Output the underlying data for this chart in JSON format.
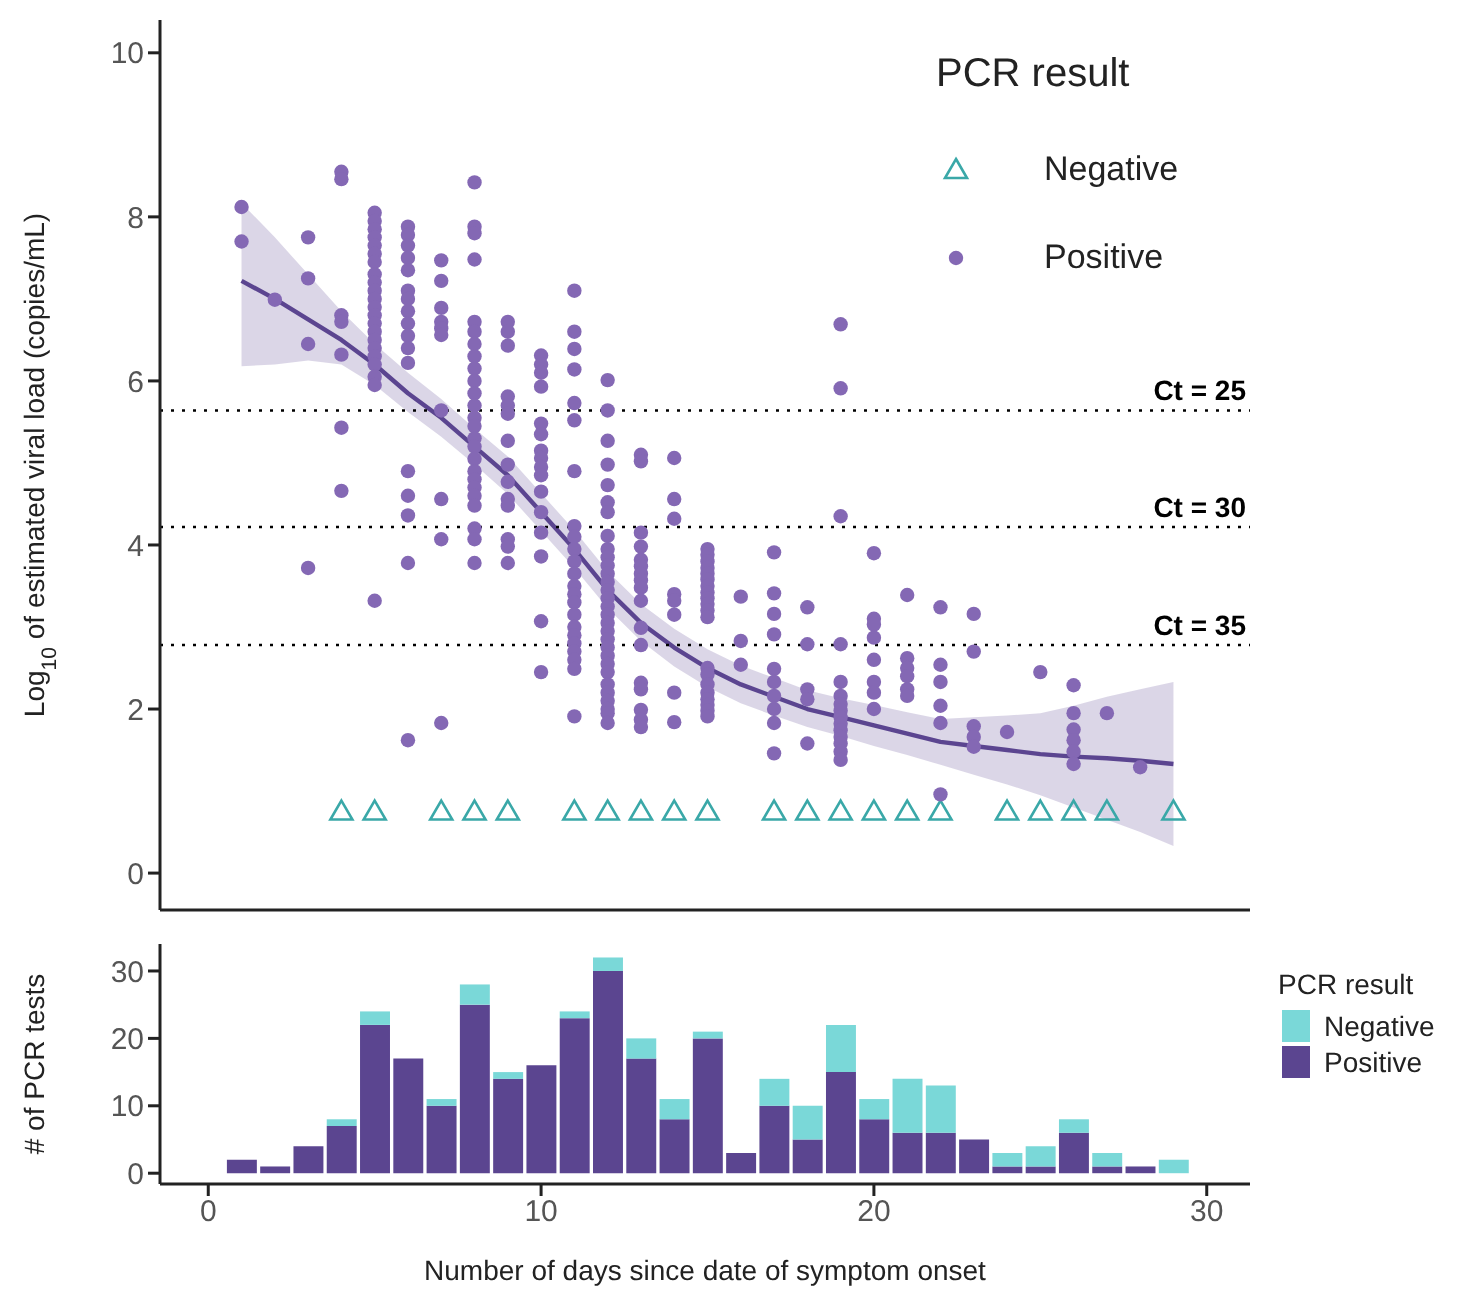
{
  "chart_data": [
    {
      "type": "scatter",
      "ylabel": "Log$_{10}$ of estimated viral load (copies/mL)",
      "legend_title": "PCR result",
      "legend": "top right",
      "tick_labels": "y",
      "xlim": [
        -1.45,
        31.3
      ],
      "xticks": [
        0,
        10,
        20,
        30
      ],
      "ylim": [
        -0.45,
        10.4
      ],
      "yticks": [
        0,
        2,
        4,
        6,
        8,
        10
      ],
      "ref_lines": [
        {
          "axis": "y",
          "value": 5.64,
          "color": "#000000",
          "line_style": "dotted"
        },
        {
          "axis": "y",
          "value": 4.22,
          "color": "#000000",
          "line_style": "dotted"
        },
        {
          "axis": "y",
          "value": 2.78,
          "color": "#000000",
          "line_style": "dotted"
        }
      ],
      "annotations": [
        {
          "text": "Ct = 25",
          "y": 5.64
        },
        {
          "text": "Ct = 30",
          "y": 4.22
        },
        {
          "text": "Ct = 35",
          "y": 2.78
        }
      ],
      "series": [
        {
          "type": "line",
          "color": "#5b4590",
          "marker": "none",
          "line_style": "solid",
          "x": [
            1,
            2,
            3,
            4,
            5,
            6,
            7,
            8,
            9,
            10,
            11,
            12,
            13,
            14,
            15,
            16,
            17,
            18,
            19,
            20,
            21,
            22,
            23,
            24,
            25,
            26,
            27,
            28,
            29
          ],
          "values": [
            7.22,
            7.0,
            6.75,
            6.5,
            6.2,
            5.85,
            5.55,
            5.2,
            4.85,
            4.4,
            3.95,
            3.45,
            3.05,
            2.75,
            2.5,
            2.3,
            2.15,
            2.0,
            1.9,
            1.8,
            1.7,
            1.6,
            1.55,
            1.5,
            1.45,
            1.42,
            1.4,
            1.37,
            1.33
          ],
          "lower": [
            6.18,
            6.2,
            6.25,
            6.2,
            5.95,
            5.62,
            5.32,
            4.98,
            4.62,
            4.17,
            3.72,
            3.23,
            2.83,
            2.52,
            2.27,
            2.07,
            1.92,
            1.78,
            1.67,
            1.55,
            1.44,
            1.32,
            1.2,
            1.08,
            0.95,
            0.8,
            0.65,
            0.5,
            0.33
          ],
          "upper": [
            8.17,
            7.75,
            7.3,
            6.85,
            6.45,
            6.1,
            5.78,
            5.42,
            5.08,
            4.63,
            4.18,
            3.68,
            3.28,
            2.98,
            2.73,
            2.53,
            2.38,
            2.23,
            2.13,
            2.05,
            1.96,
            1.88,
            1.9,
            1.92,
            1.95,
            2.04,
            2.15,
            2.24,
            2.33
          ]
        },
        {
          "type": "scatter",
          "name": "Negative",
          "color": "#3aa8a8",
          "marker": "triangle",
          "x": [
            4,
            5,
            7,
            8,
            9,
            11,
            12,
            13,
            14,
            15,
            17,
            18,
            19,
            20,
            21,
            22,
            24,
            25,
            26,
            27,
            29
          ],
          "values": [
            0.75,
            0.75,
            0.75,
            0.75,
            0.75,
            0.75,
            0.75,
            0.75,
            0.75,
            0.75,
            0.75,
            0.75,
            0.75,
            0.75,
            0.75,
            0.75,
            0.75,
            0.75,
            0.75,
            0.75,
            0.75
          ]
        },
        {
          "type": "scatter",
          "name": "Positive",
          "color": "#8468b4",
          "marker": "circle",
          "x": [
            1,
            1,
            2,
            3,
            3,
            3,
            3,
            4,
            4,
            4,
            4,
            4,
            4,
            4,
            5,
            5,
            5,
            5,
            5,
            5,
            5,
            5,
            5,
            5,
            5,
            5,
            5,
            5,
            5,
            5,
            5,
            5,
            5,
            5,
            5,
            5,
            6,
            6,
            6,
            6,
            6,
            6,
            6,
            6,
            6,
            6,
            6,
            6,
            6,
            6,
            6,
            6,
            6,
            7,
            7,
            7,
            7,
            7,
            7,
            7,
            7,
            7,
            7,
            8,
            8,
            8,
            8,
            8,
            8,
            8,
            8,
            8,
            8,
            8,
            8,
            8,
            8,
            8,
            8,
            8,
            8,
            8,
            8,
            8,
            8,
            8,
            8,
            8,
            9,
            9,
            9,
            9,
            9,
            9,
            9,
            9,
            9,
            9,
            9,
            9,
            9,
            9,
            10,
            10,
            10,
            10,
            10,
            10,
            10,
            10,
            10,
            10,
            10,
            10,
            10,
            10,
            10,
            10,
            11,
            11,
            11,
            11,
            11,
            11,
            11,
            11,
            11,
            11,
            11,
            11,
            11,
            11,
            11,
            11,
            11,
            11,
            11,
            11,
            11,
            11,
            11,
            12,
            12,
            12,
            12,
            12,
            12,
            12,
            12,
            12,
            12,
            12,
            12,
            12,
            12,
            12,
            12,
            12,
            12,
            12,
            12,
            12,
            12,
            12,
            12,
            12,
            12,
            12,
            12,
            12,
            12,
            13,
            13,
            13,
            13,
            13,
            13,
            13,
            13,
            13,
            13,
            13,
            13,
            13,
            13,
            13,
            13,
            13,
            14,
            14,
            14,
            14,
            14,
            14,
            14,
            14,
            15,
            15,
            15,
            15,
            15,
            15,
            15,
            15,
            15,
            15,
            15,
            15,
            15,
            15,
            15,
            15,
            15,
            15,
            15,
            15,
            16,
            16,
            16,
            17,
            17,
            17,
            17,
            17,
            17,
            17,
            17,
            17,
            17,
            18,
            18,
            18,
            18,
            18,
            19,
            19,
            19,
            19,
            19,
            19,
            19,
            19,
            19,
            19,
            19,
            19,
            19,
            19,
            19,
            20,
            20,
            20,
            20,
            20,
            20,
            20,
            20,
            21,
            21,
            21,
            21,
            21,
            21,
            22,
            22,
            22,
            22,
            22,
            22,
            23,
            23,
            23,
            23,
            23,
            24,
            25,
            26,
            26,
            26,
            26,
            26,
            26,
            27,
            28
          ],
          "values": [
            8.12,
            7.7,
            6.99,
            7.75,
            7.25,
            6.45,
            3.72,
            8.55,
            8.46,
            6.8,
            6.72,
            6.32,
            5.43,
            4.66,
            8.05,
            7.95,
            7.85,
            7.75,
            7.65,
            7.55,
            7.45,
            7.3,
            7.2,
            7.1,
            7.0,
            6.9,
            6.8,
            6.7,
            6.6,
            6.5,
            6.4,
            6.3,
            6.2,
            6.05,
            5.95,
            3.32,
            7.88,
            7.78,
            7.65,
            7.5,
            7.35,
            7.1,
            7.0,
            6.85,
            6.7,
            6.55,
            6.4,
            6.22,
            4.9,
            4.6,
            4.36,
            3.78,
            1.62,
            7.47,
            7.22,
            6.89,
            6.72,
            6.64,
            6.56,
            5.64,
            4.56,
            4.07,
            1.83,
            8.42,
            7.88,
            7.8,
            7.48,
            6.72,
            6.6,
            6.45,
            6.3,
            6.15,
            6.0,
            5.85,
            5.7,
            5.55,
            5.45,
            5.3,
            5.2,
            5.05,
            4.9,
            4.8,
            4.7,
            4.6,
            4.48,
            4.2,
            4.07,
            3.78,
            6.72,
            6.6,
            6.43,
            5.81,
            5.7,
            5.6,
            5.27,
            4.98,
            4.77,
            4.56,
            4.48,
            4.07,
            3.98,
            3.78,
            6.31,
            6.2,
            6.1,
            5.93,
            5.48,
            5.35,
            5.15,
            5.06,
            4.95,
            4.85,
            4.65,
            4.4,
            4.15,
            3.86,
            3.07,
            2.45,
            7.1,
            6.6,
            6.39,
            6.14,
            5.73,
            5.52,
            4.9,
            4.23,
            4.1,
            3.95,
            3.8,
            3.65,
            3.5,
            3.4,
            3.3,
            3.15,
            3.0,
            2.9,
            2.8,
            2.7,
            2.6,
            2.49,
            1.91,
            6.01,
            5.64,
            5.27,
            4.98,
            4.73,
            4.52,
            4.4,
            4.11,
            3.95,
            3.85,
            3.75,
            3.65,
            3.55,
            3.45,
            3.35,
            3.25,
            3.15,
            3.05,
            2.95,
            2.85,
            2.75,
            2.65,
            2.55,
            2.45,
            2.3,
            2.2,
            2.1,
            2.0,
            1.95,
            1.83,
            5.1,
            5.02,
            4.15,
            3.98,
            3.82,
            3.74,
            3.65,
            3.57,
            3.48,
            3.32,
            2.99,
            2.78,
            2.32,
            2.24,
            1.99,
            1.87,
            1.78,
            5.06,
            4.56,
            4.32,
            3.4,
            3.32,
            3.15,
            2.2,
            1.84,
            3.95,
            3.88,
            3.8,
            3.72,
            3.65,
            3.58,
            3.5,
            3.42,
            3.35,
            3.28,
            3.2,
            3.12,
            2.5,
            2.42,
            2.3,
            2.2,
            2.12,
            2.05,
            1.98,
            1.91,
            3.37,
            2.83,
            2.54,
            3.91,
            3.41,
            3.16,
            2.91,
            2.49,
            2.33,
            2.16,
            2.0,
            1.83,
            1.46,
            3.24,
            2.79,
            2.24,
            2.12,
            1.58,
            6.69,
            5.91,
            4.35,
            2.79,
            2.33,
            2.16,
            2.06,
            1.98,
            1.9,
            1.82,
            1.74,
            1.66,
            1.58,
            1.48,
            1.38,
            3.9,
            3.1,
            3.03,
            2.87,
            2.6,
            2.33,
            2.2,
            2.0,
            3.39,
            2.62,
            2.5,
            2.4,
            2.24,
            2.16,
            3.24,
            2.54,
            2.33,
            2.04,
            1.83,
            0.96,
            3.16,
            2.7,
            1.79,
            1.66,
            1.54,
            1.72,
            2.45,
            2.29,
            1.95,
            1.75,
            1.62,
            1.48,
            1.33,
            1.95,
            1.29
          ]
        }
      ]
    },
    {
      "type": "bar",
      "stacked": true,
      "xlabel": "Number of days since date of symptom onset",
      "ylabel": "# of PCR tests",
      "legend_title": "PCR result",
      "legend": "right",
      "xlim": [
        -1.45,
        31.3
      ],
      "xticks": [
        0,
        10,
        20,
        30
      ],
      "ylim": [
        -1.6,
        34
      ],
      "yticks": [
        0,
        10,
        20,
        30
      ],
      "x": [
        1,
        2,
        3,
        4,
        5,
        6,
        7,
        8,
        9,
        10,
        11,
        12,
        13,
        14,
        15,
        16,
        17,
        18,
        19,
        20,
        21,
        22,
        23,
        24,
        25,
        26,
        27,
        28,
        29
      ],
      "series": [
        {
          "name": "Positive",
          "color": "#5b4590",
          "values": [
            2,
            1,
            4,
            7,
            22,
            17,
            10,
            25,
            14,
            16,
            23,
            30,
            17,
            8,
            20,
            3,
            10,
            5,
            15,
            8,
            6,
            6,
            5,
            1,
            1,
            6,
            1,
            1,
            0
          ]
        },
        {
          "name": "Negative",
          "color": "#7ad8d8",
          "values": [
            0,
            0,
            0,
            1,
            2,
            0,
            1,
            3,
            1,
            0,
            1,
            2,
            3,
            3,
            1,
            0,
            4,
            5,
            7,
            3,
            8,
            7,
            0,
            2,
            3,
            2,
            2,
            0,
            2
          ]
        }
      ]
    }
  ]
}
